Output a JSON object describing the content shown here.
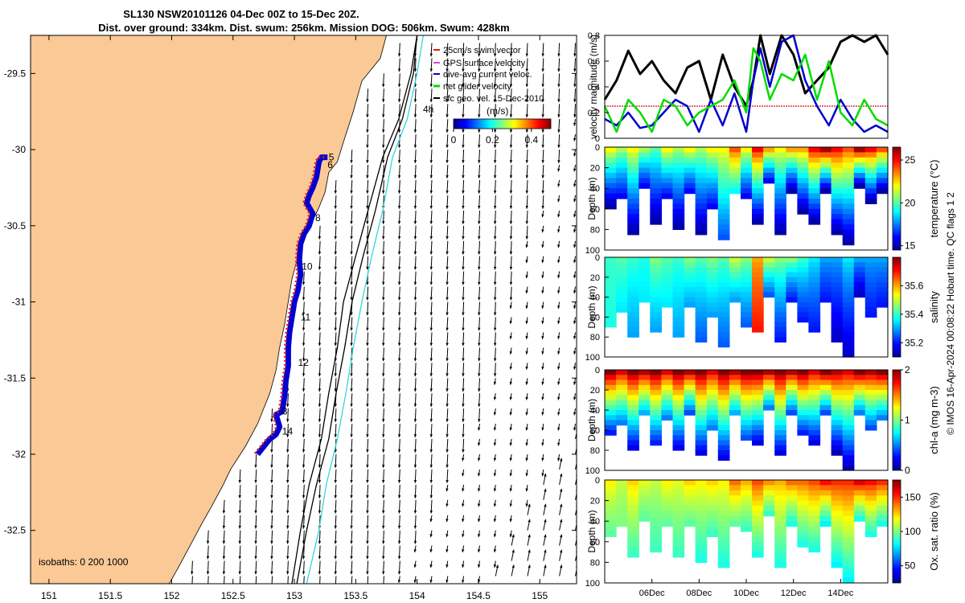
{
  "title": {
    "line1": "SL130 NSW20101126 04-Dec 00Z to 15-Dec 20Z.",
    "line2": "Dist. over ground: 334km. Dist. swum: 256km. Mission DOG: 506km. Swum: 428km"
  },
  "credit": "© IMOS 16-Apr-2024 00:08:22 Hobart time. QC flags 1  2",
  "colors": {
    "land": "#fbc995",
    "track": "#e11a1a",
    "dive_avg": "#0000d0",
    "net_glider": "#00dd00",
    "isobath": "#000000",
    "isobath_2000": "#33d6dd",
    "swim_ref": "#d01010"
  },
  "chart_data": [
    {
      "type": "map",
      "xlim": [
        150.85,
        155.3
      ],
      "ylim": [
        -32.85,
        -29.25
      ],
      "x_ticks": [
        151,
        151.5,
        152,
        152.5,
        153,
        153.5,
        154,
        154.5,
        155
      ],
      "x_tick_labels": [
        "151",
        "151.5",
        "152",
        "152.5",
        "153",
        "153.5",
        "154",
        "154.5",
        "155"
      ],
      "y_ticks": [
        -29.5,
        -30,
        -30.5,
        -31,
        -31.5,
        -32,
        -32.5
      ],
      "y_tick_labels": [
        "-29.5",
        "-30",
        "-30.5",
        "-31",
        "-31.5",
        "-32",
        "-32.5"
      ],
      "legend": {
        "placement": "top-right",
        "entries": [
          "25cm/s swim vector",
          "GPS surface velocity",
          "dive-avg current veloc.",
          "net glider velocity",
          "sfc geo. vel. 15-Dec-2010"
        ]
      },
      "colorbar": {
        "label": "(m/s)",
        "ticks": [
          0,
          0.2,
          0.4
        ],
        "tick_labels": [
          "0",
          "0.2",
          "0.4"
        ],
        "range": [
          0,
          0.5
        ]
      },
      "isobath_label": "isobaths: 0   200  1000",
      "hour_label": "4h",
      "day_labels": [
        {
          "text": "5",
          "lon": 153.28,
          "lat": -30.07
        },
        {
          "text": "6",
          "lon": 153.27,
          "lat": -30.12
        },
        {
          "text": "8",
          "lon": 153.17,
          "lat": -30.47
        },
        {
          "text": "10",
          "lon": 153.06,
          "lat": -30.79
        },
        {
          "text": "11",
          "lon": 153.05,
          "lat": -31.12
        },
        {
          "text": "12",
          "lon": 153.03,
          "lat": -31.42
        },
        {
          "text": "3",
          "lon": 152.9,
          "lat": -31.74
        },
        {
          "text": "14",
          "lon": 152.9,
          "lat": -31.87
        }
      ],
      "coastline": [
        [
          153.75,
          -29.25
        ],
        [
          153.7,
          -29.4
        ],
        [
          153.55,
          -29.55
        ],
        [
          153.48,
          -29.75
        ],
        [
          153.4,
          -29.95
        ],
        [
          153.35,
          -30.08
        ],
        [
          153.28,
          -30.15
        ],
        [
          153.25,
          -30.28
        ],
        [
          153.2,
          -30.38
        ],
        [
          153.1,
          -30.55
        ],
        [
          153.03,
          -30.7
        ],
        [
          152.98,
          -30.85
        ],
        [
          152.95,
          -31.0
        ],
        [
          152.92,
          -31.15
        ],
        [
          152.88,
          -31.3
        ],
        [
          152.85,
          -31.45
        ],
        [
          152.8,
          -31.6
        ],
        [
          152.75,
          -31.7
        ],
        [
          152.7,
          -31.8
        ],
        [
          152.6,
          -31.95
        ],
        [
          152.48,
          -32.1
        ],
        [
          152.42,
          -32.2
        ],
        [
          152.32,
          -32.35
        ],
        [
          152.25,
          -32.45
        ],
        [
          152.15,
          -32.6
        ],
        [
          152.05,
          -32.75
        ],
        [
          151.98,
          -32.85
        ]
      ],
      "glider_track": [
        [
          153.27,
          -30.05
        ],
        [
          153.22,
          -30.05
        ],
        [
          153.2,
          -30.08
        ],
        [
          153.18,
          -30.18
        ],
        [
          153.15,
          -30.25
        ],
        [
          153.12,
          -30.3
        ],
        [
          153.1,
          -30.35
        ],
        [
          153.15,
          -30.42
        ],
        [
          153.12,
          -30.5
        ],
        [
          153.08,
          -30.55
        ],
        [
          153.05,
          -30.62
        ],
        [
          153.04,
          -30.72
        ],
        [
          153.05,
          -30.82
        ],
        [
          153.03,
          -30.92
        ],
        [
          153.0,
          -31.0
        ],
        [
          152.98,
          -31.1
        ],
        [
          152.96,
          -31.2
        ],
        [
          152.95,
          -31.3
        ],
        [
          152.95,
          -31.42
        ],
        [
          152.93,
          -31.52
        ],
        [
          152.92,
          -31.62
        ],
        [
          152.9,
          -31.72
        ],
        [
          152.85,
          -31.74
        ],
        [
          152.88,
          -31.82
        ],
        [
          152.85,
          -31.87
        ],
        [
          152.8,
          -31.9
        ],
        [
          152.75,
          -31.95
        ],
        [
          152.7,
          -32.0
        ]
      ],
      "isobaths": [
        {
          "depth": 200,
          "points": [
            [
              154.0,
              -29.25
            ],
            [
              153.95,
              -29.5
            ],
            [
              153.85,
              -29.8
            ],
            [
              153.72,
              -30.05
            ],
            [
              153.6,
              -30.4
            ],
            [
              153.5,
              -30.7
            ],
            [
              153.4,
              -31.0
            ],
            [
              153.35,
              -31.3
            ],
            [
              153.28,
              -31.6
            ],
            [
              153.22,
              -31.9
            ],
            [
              153.12,
              -32.2
            ],
            [
              153.05,
              -32.5
            ],
            [
              152.98,
              -32.85
            ]
          ]
        },
        {
          "depth": 1000,
          "points": [
            [
              154.0,
              -29.25
            ],
            [
              153.97,
              -29.5
            ],
            [
              153.88,
              -29.8
            ],
            [
              153.76,
              -30.05
            ],
            [
              153.66,
              -30.4
            ],
            [
              153.56,
              -30.7
            ],
            [
              153.47,
              -31.0
            ],
            [
              153.41,
              -31.3
            ],
            [
              153.34,
              -31.6
            ],
            [
              153.28,
              -31.9
            ],
            [
              153.18,
              -32.2
            ],
            [
              153.1,
              -32.5
            ],
            [
              153.02,
              -32.85
            ]
          ]
        },
        {
          "depth": 2000,
          "points": [
            [
              154.05,
              -29.25
            ],
            [
              154.0,
              -29.5
            ],
            [
              153.92,
              -29.8
            ],
            [
              153.8,
              -30.05
            ],
            [
              153.72,
              -30.4
            ],
            [
              153.63,
              -30.7
            ],
            [
              153.55,
              -31.0
            ],
            [
              153.48,
              -31.3
            ],
            [
              153.42,
              -31.6
            ],
            [
              153.35,
              -31.9
            ],
            [
              153.26,
              -32.2
            ],
            [
              153.2,
              -32.5
            ],
            [
              153.1,
              -32.85
            ]
          ]
        }
      ]
    },
    {
      "type": "line",
      "ylabel": "velocity magnitude (m/s)",
      "xlim": [
        4,
        16
      ],
      "ylim": [
        0,
        0.8
      ],
      "y_ticks": [
        0,
        0.2,
        0.4,
        0.6,
        0.8
      ],
      "y_tick_labels": [
        "0",
        "0.2",
        "0.4",
        "0.6",
        "0.8"
      ],
      "reference_level": 0.25,
      "series": [
        {
          "color": "#000000",
          "x": [
            4.0,
            4.5,
            5.0,
            5.5,
            6.0,
            6.5,
            7.0,
            7.5,
            8.0,
            8.5,
            9.0,
            9.5,
            10.0,
            10.3,
            10.6,
            11.0,
            11.5,
            12.0,
            12.5,
            13.0,
            13.5,
            14.0,
            14.5,
            15.0,
            15.5,
            16.0
          ],
          "y": [
            0.3,
            0.45,
            0.68,
            0.5,
            0.6,
            0.45,
            0.35,
            0.55,
            0.6,
            0.3,
            0.65,
            0.4,
            0.25,
            0.45,
            0.8,
            0.5,
            0.85,
            0.65,
            0.35,
            0.45,
            0.55,
            0.75,
            0.85,
            0.75,
            0.8,
            0.65
          ]
        },
        {
          "color": "#0000d0",
          "x": [
            4.0,
            4.5,
            5.0,
            5.5,
            6.0,
            6.5,
            7.0,
            7.5,
            8.0,
            8.5,
            9.0,
            9.5,
            10.0,
            10.3,
            10.6,
            11.0,
            11.5,
            12.0,
            12.5,
            13.0,
            13.5,
            14.0,
            14.5,
            15.0,
            15.5,
            16.0
          ],
          "y": [
            0.15,
            0.1,
            0.2,
            0.08,
            0.1,
            0.2,
            0.3,
            0.25,
            0.05,
            0.3,
            0.1,
            0.35,
            0.05,
            0.45,
            0.7,
            0.4,
            0.75,
            0.8,
            0.45,
            0.25,
            0.1,
            0.3,
            0.15,
            0.05,
            0.1,
            0.05
          ]
        },
        {
          "color": "#00dd00",
          "x": [
            4.0,
            4.5,
            5.0,
            5.5,
            6.0,
            6.5,
            7.0,
            7.5,
            8.0,
            8.5,
            9.0,
            9.5,
            10.0,
            10.3,
            10.6,
            11.0,
            11.5,
            12.0,
            12.5,
            13.0,
            13.5,
            14.0,
            14.5,
            15.0,
            15.5,
            16.0
          ],
          "y": [
            0.25,
            0.05,
            0.3,
            0.2,
            0.05,
            0.3,
            0.25,
            0.1,
            0.2,
            0.25,
            0.3,
            0.45,
            0.2,
            0.7,
            0.6,
            0.3,
            0.5,
            0.45,
            0.65,
            0.3,
            0.6,
            0.2,
            0.1,
            0.3,
            0.15,
            0.1
          ]
        }
      ]
    },
    {
      "type": "heatmap",
      "ylabel": "Depth (m)",
      "xlim": [
        4,
        16
      ],
      "ylim": [
        100,
        0
      ],
      "y_ticks": [
        0,
        20,
        40,
        60,
        80,
        100
      ],
      "y_tick_labels": [
        "0",
        "20",
        "40",
        "60",
        "80",
        "100"
      ],
      "colorbar": {
        "label": "temperature (°C)",
        "range": [
          14.5,
          26.5
        ],
        "ticks": [
          15,
          20,
          25
        ],
        "tick_labels": [
          "15",
          "20",
          "25"
        ]
      },
      "profile_bottom_depths": [
        55,
        45,
        80,
        35,
        70,
        45,
        75,
        40,
        80,
        55,
        85,
        40,
        45,
        70,
        30,
        80,
        40,
        60,
        70,
        40,
        80,
        90,
        35,
        50,
        40
      ],
      "surface_values": [
        22,
        21,
        22,
        21,
        20,
        22,
        21,
        22,
        21,
        22,
        22,
        24,
        22,
        25,
        23,
        22,
        23,
        23,
        25,
        26,
        25,
        24,
        26,
        25,
        24
      ],
      "bottom_values": [
        15,
        16,
        15,
        16,
        15,
        16,
        15,
        16,
        15,
        16,
        17,
        19,
        16,
        15,
        16,
        15,
        15,
        15,
        15,
        15,
        15,
        15,
        15,
        15,
        15
      ]
    },
    {
      "type": "heatmap",
      "ylabel": "Depth (m)",
      "xlim": [
        4,
        16
      ],
      "ylim": [
        100,
        0
      ],
      "y_ticks": [
        0,
        20,
        40,
        60,
        80,
        100
      ],
      "y_tick_labels": [
        "0",
        "20",
        "40",
        "60",
        "80",
        "100"
      ],
      "colorbar": {
        "label": "salinity",
        "range": [
          35.1,
          35.8
        ],
        "ticks": [
          35.2,
          35.4,
          35.6
        ],
        "tick_labels": [
          "35.2",
          "35.4",
          "35.6"
        ]
      },
      "profile_bottom_depths": [
        65,
        50,
        75,
        40,
        70,
        45,
        75,
        45,
        80,
        55,
        85,
        40,
        65,
        70,
        35,
        80,
        40,
        60,
        70,
        40,
        80,
        95,
        35,
        55,
        45
      ],
      "surface_values": [
        35.4,
        35.42,
        35.4,
        35.38,
        35.45,
        35.42,
        35.4,
        35.45,
        35.42,
        35.45,
        35.42,
        35.5,
        35.45,
        35.6,
        35.5,
        35.45,
        35.45,
        35.4,
        35.35,
        35.3,
        35.3,
        35.35,
        35.3,
        35.3,
        35.3
      ],
      "bottom_values": [
        35.38,
        35.35,
        35.3,
        35.35,
        35.3,
        35.35,
        35.3,
        35.3,
        35.25,
        35.3,
        35.25,
        35.3,
        35.25,
        35.7,
        35.25,
        35.2,
        35.2,
        35.2,
        35.2,
        35.2,
        35.15,
        35.15,
        35.15,
        35.2,
        35.2
      ]
    },
    {
      "type": "heatmap",
      "ylabel": "chl-a (mg m-3)",
      "depth_label": "Depth (m)",
      "xlim": [
        4,
        16
      ],
      "ylim": [
        100,
        0
      ],
      "y_ticks": [
        0,
        20,
        40,
        60,
        80,
        100
      ],
      "y_tick_labels": [
        "0",
        "20",
        "40",
        "60",
        "80",
        "100"
      ],
      "colorbar": {
        "label": "chl-a (mg m-3)",
        "range": [
          0,
          2
        ],
        "ticks": [
          0,
          1,
          2
        ],
        "tick_labels": [
          "0",
          "1",
          "2"
        ]
      },
      "profile_bottom_depths": [
        60,
        50,
        75,
        40,
        70,
        45,
        75,
        40,
        80,
        55,
        85,
        40,
        65,
        70,
        35,
        80,
        40,
        60,
        70,
        40,
        80,
        95,
        40,
        55,
        45
      ],
      "surface_values": [
        2,
        1.8,
        2,
        1.9,
        2,
        1.8,
        2,
        1.9,
        2,
        1.8,
        2,
        1.9,
        2,
        2,
        1.9,
        2,
        1.9,
        2,
        1.8,
        2,
        1.9,
        1.8,
        2,
        1.9,
        2
      ],
      "bottom_values": [
        0.3,
        0.5,
        0.2,
        0.6,
        0.3,
        0.5,
        0.2,
        0.4,
        0.2,
        0.5,
        0.2,
        0.6,
        0.4,
        0.2,
        0.5,
        0.2,
        0.4,
        0.3,
        0.2,
        0.4,
        0.1,
        0.1,
        0.5,
        0.4,
        0.5
      ]
    },
    {
      "type": "heatmap",
      "ylabel": "Ox. sat. ratio (%)",
      "depth_label": "Depth (m)",
      "xlim": [
        4,
        16
      ],
      "ylim": [
        100,
        0
      ],
      "y_ticks": [
        0,
        20,
        40,
        60,
        80,
        100
      ],
      "y_tick_labels": [
        "0",
        "20",
        "40",
        "60",
        "80",
        "100"
      ],
      "x_ticks": [
        6,
        8,
        10,
        12,
        14
      ],
      "x_tick_labels": [
        "06Dec",
        "08Dec",
        "10Dec",
        "12Dec",
        "14Dec"
      ],
      "colorbar": {
        "label": "Ox. sat. ratio (%)",
        "range": [
          25,
          175
        ],
        "ticks": [
          50,
          100,
          150
        ],
        "tick_labels": [
          "50",
          "100",
          "150"
        ]
      },
      "profile_bottom_depths": [
        50,
        40,
        70,
        35,
        65,
        40,
        70,
        40,
        75,
        50,
        80,
        40,
        45,
        70,
        30,
        80,
        40,
        60,
        65,
        40,
        80,
        95,
        35,
        50,
        40
      ],
      "surface_values": [
        120,
        110,
        125,
        115,
        110,
        120,
        115,
        125,
        120,
        125,
        120,
        140,
        130,
        145,
        135,
        130,
        140,
        140,
        145,
        155,
        150,
        150,
        160,
        155,
        150
      ],
      "bottom_values": [
        95,
        100,
        90,
        95,
        90,
        95,
        90,
        95,
        85,
        90,
        85,
        95,
        90,
        85,
        90,
        85,
        85,
        85,
        85,
        80,
        80,
        80,
        85,
        85,
        85
      ]
    }
  ]
}
